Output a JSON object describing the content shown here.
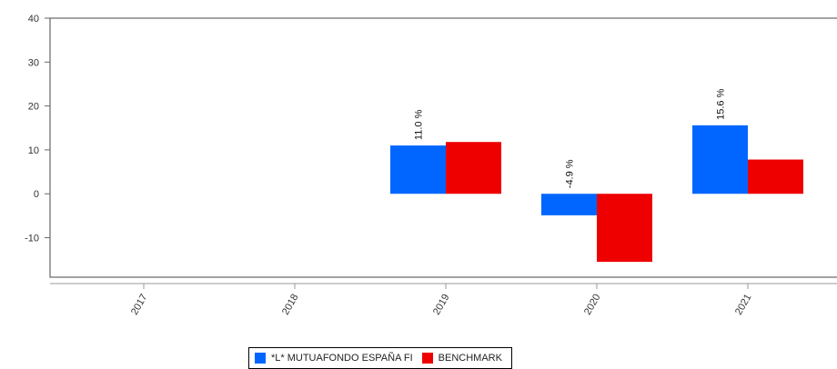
{
  "chart_data": {
    "type": "bar",
    "categories": [
      "2017",
      "2018",
      "2019",
      "2020",
      "2021"
    ],
    "series": [
      {
        "name": "*L* MUTUAFONDO ESPAÑA FI",
        "color": "#0066ff",
        "values": [
          null,
          null,
          11.0,
          -4.9,
          15.6
        ],
        "labels": [
          null,
          null,
          "11.0 %",
          "-4.9 %",
          "15.6 %"
        ]
      },
      {
        "name": "BENCHMARK",
        "color": "#ee0000",
        "values": [
          null,
          null,
          11.8,
          -15.5,
          7.8
        ]
      }
    ],
    "ylim": [
      -19,
      40
    ],
    "yticks": [
      40,
      30,
      20,
      10,
      0,
      -10
    ],
    "grid": false,
    "legend_position": "bottom"
  },
  "legend": {
    "item1": "*L* MUTUAFONDO ESPAÑA FI",
    "item2": "BENCHMARK"
  }
}
